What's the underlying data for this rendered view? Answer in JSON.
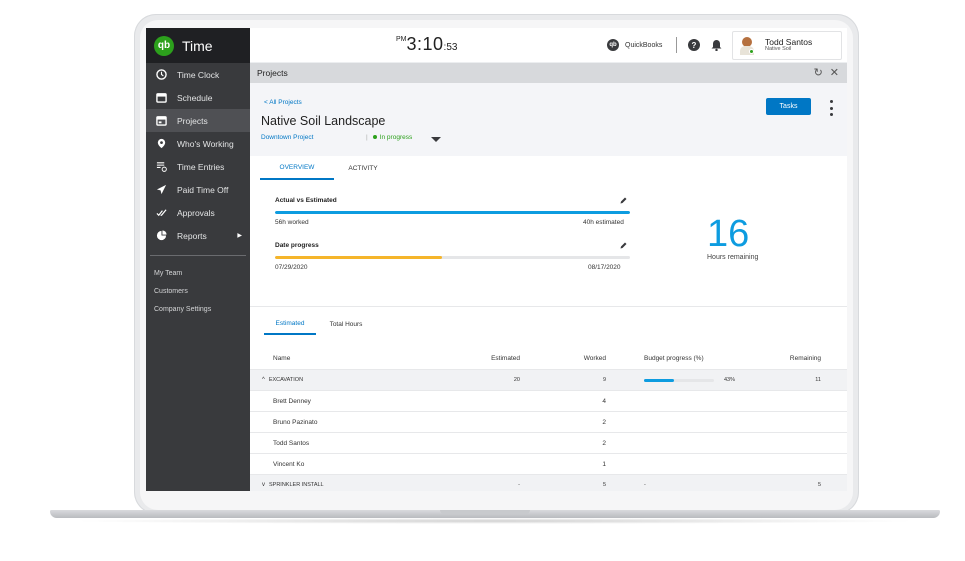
{
  "app": {
    "name": "Time",
    "logo_text": "qb"
  },
  "clock": {
    "ampm": "PM",
    "hm": "3:10",
    "seconds": ":53"
  },
  "header": {
    "quickbooks_label": "QuickBooks",
    "help_icon": "?",
    "user": {
      "name": "Todd Santos",
      "company": "Native Soil"
    }
  },
  "sidebar": {
    "items": [
      {
        "label": "Time Clock",
        "icon": "clock-icon"
      },
      {
        "label": "Schedule",
        "icon": "calendar-icon"
      },
      {
        "label": "Projects",
        "icon": "projects-icon"
      },
      {
        "label": "Who's Working",
        "icon": "location-pin-icon"
      },
      {
        "label": "Time Entries",
        "icon": "time-entries-icon"
      },
      {
        "label": "Paid Time Off",
        "icon": "airplane-icon"
      },
      {
        "label": "Approvals",
        "icon": "checkmarks-icon"
      },
      {
        "label": "Reports",
        "icon": "pie-chart-icon",
        "caret": "▶"
      }
    ],
    "links": [
      "My Team",
      "Customers",
      "Company Settings"
    ]
  },
  "strip": {
    "title": "Projects",
    "refresh": "↻",
    "close": "✕"
  },
  "project": {
    "back_label": "< All Projects",
    "title": "Native Soil Landscape",
    "customer": "Downtown Project",
    "status_sep": "|",
    "status": "In progress",
    "tasks_label": "Tasks"
  },
  "tabs": {
    "overview": "OVERVIEW",
    "activity": "ACTIVITY"
  },
  "metrics": {
    "actual_title": "Actual vs Estimated",
    "worked": "56h worked",
    "estimated": "40h estimated",
    "actual_progress": 1.0,
    "date_title": "Date progress",
    "start_date": "07/29/2020",
    "end_date": "08/17/2020",
    "date_progress": 0.47,
    "hours_remaining": "16",
    "hours_remaining_label": "Hours remaining"
  },
  "tabs2": {
    "estimated": "Estimated",
    "total": "Total Hours"
  },
  "table": {
    "headers": [
      "Name",
      "Estimated",
      "Worked",
      "Budget progress (%)",
      "Remaining"
    ],
    "rows": [
      {
        "type": "group",
        "chev": "^",
        "name": "EXCAVATION",
        "estimated": "20",
        "worked": "9",
        "budget": "43%",
        "budget_fraction": 0.43,
        "remaining": "11"
      },
      {
        "type": "item",
        "name": "Brett Denney",
        "estimated": "",
        "worked": "4",
        "budget": "",
        "remaining": ""
      },
      {
        "type": "item",
        "name": "Bruno Pazinato",
        "estimated": "",
        "worked": "2",
        "budget": "",
        "remaining": ""
      },
      {
        "type": "item",
        "name": "Todd Santos",
        "estimated": "",
        "worked": "2",
        "budget": "",
        "remaining": ""
      },
      {
        "type": "item",
        "name": "Vincent Ko",
        "estimated": "",
        "worked": "1",
        "budget": "",
        "remaining": ""
      },
      {
        "type": "group",
        "chev": "v",
        "name": "SPRINKLER INSTALL",
        "estimated": "-",
        "worked": "5",
        "budget": "-",
        "remaining": "5"
      }
    ]
  },
  "colors": {
    "accent": "#0077c5",
    "bar_blue": "#0d9ce0",
    "bar_yellow": "#f5b52a",
    "brand_green": "#2ca01c",
    "sidebar": "#393a3d"
  }
}
